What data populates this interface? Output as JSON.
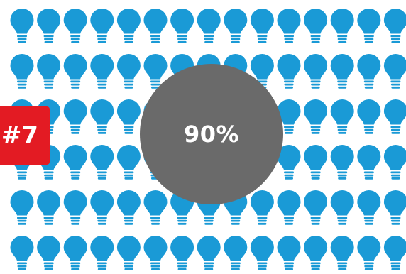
{
  "rank_badge": {
    "label": "#7",
    "color": "#e31b23"
  },
  "percent_circle": {
    "label": "90%",
    "color": "#6a6a6a"
  },
  "bulb_grid": {
    "icon": "lightbulb-icon",
    "color": "#1a9ad6",
    "rows": 6,
    "columns": 15
  }
}
